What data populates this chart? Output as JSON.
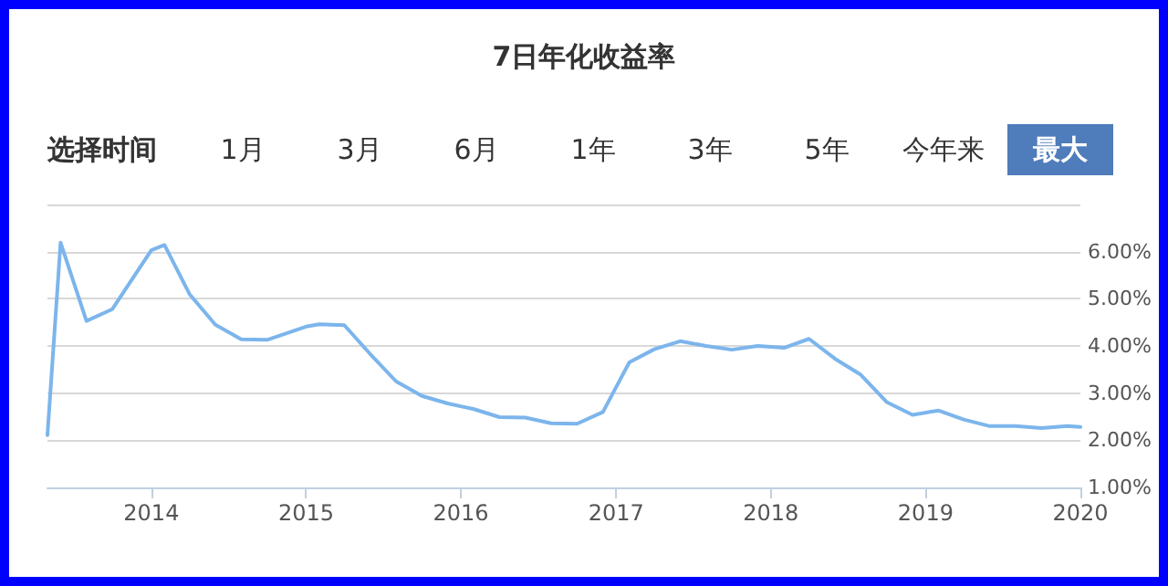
{
  "chart_data": {
    "type": "line",
    "title": "7日年化收益率",
    "annotations": [
      "选择时间",
      "1月",
      "3月",
      "6月",
      "1年",
      "3年",
      "5年",
      "今年来",
      "最大"
    ],
    "x": [
      "2013-05",
      "2013-06",
      "2013-08",
      "2013-10",
      "2014-01",
      "2014-02",
      "2014-04",
      "2014-06",
      "2014-08",
      "2014-10",
      "2015-01",
      "2015-02",
      "2015-04",
      "2015-06",
      "2015-08",
      "2015-10",
      "2015-12",
      "2016-02",
      "2016-04",
      "2016-06",
      "2016-08",
      "2016-10",
      "2016-12",
      "2017-02",
      "2017-04",
      "2017-06",
      "2017-08",
      "2017-10",
      "2017-12",
      "2018-02",
      "2018-04",
      "2018-06",
      "2018-08",
      "2018-10",
      "2018-12",
      "2019-02",
      "2019-04",
      "2019-06",
      "2019-08",
      "2019-10",
      "2019-12",
      "2020-01"
    ],
    "series": [
      {
        "color": "#7cb5ec",
        "values": [
          2.11,
          6.19,
          4.53,
          4.78,
          6.03,
          6.14,
          5.1,
          4.45,
          4.14,
          4.13,
          4.41,
          4.46,
          4.44,
          3.83,
          3.25,
          2.94,
          2.78,
          2.66,
          2.49,
          2.48,
          2.36,
          2.35,
          2.6,
          3.65,
          3.93,
          4.1,
          4.0,
          3.92,
          4.0,
          3.96,
          4.15,
          3.73,
          3.39,
          2.81,
          2.54,
          2.63,
          2.44,
          2.3,
          2.3,
          2.26,
          2.3,
          2.28
        ]
      }
    ],
    "xlim": [
      "2013-05",
      "2020-01"
    ],
    "xticks": [
      "2014",
      "2015",
      "2016",
      "2017",
      "2018",
      "2019",
      "2020"
    ],
    "ylim": [
      1,
      7
    ],
    "yticks": [
      {
        "value": 1,
        "label": "1.00%"
      },
      {
        "value": 2,
        "label": "2.00%"
      },
      {
        "value": 3,
        "label": "3.00%"
      },
      {
        "value": 4,
        "label": "4.00%"
      },
      {
        "value": 5,
        "label": "5.00%"
      },
      {
        "value": 6,
        "label": "6.00%"
      },
      {
        "value": 7,
        "label": null
      }
    ],
    "grid": "y",
    "marker": "none",
    "line_style": "solid"
  }
}
